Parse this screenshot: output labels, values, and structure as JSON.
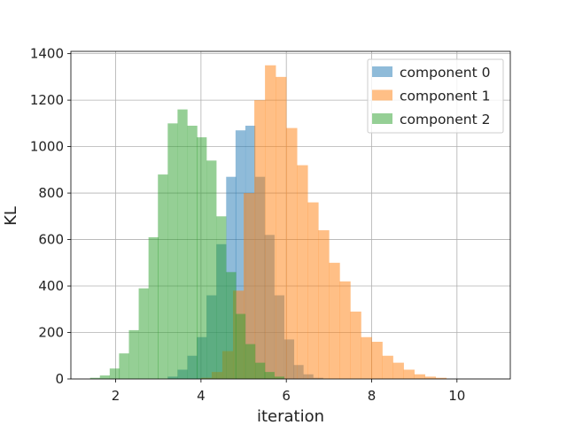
{
  "chart_data": {
    "type": "bar",
    "title": "",
    "xlabel": "iteration",
    "ylabel": "KL",
    "xlim": [
      0.95,
      11.25
    ],
    "ylim": [
      0,
      1410
    ],
    "xticks": [
      2,
      4,
      6,
      8,
      10
    ],
    "yticks": [
      0,
      200,
      400,
      600,
      800,
      1000,
      1200,
      1400
    ],
    "grid": true,
    "legend_position": "top-right",
    "series": [
      {
        "name": "component 0",
        "color": "#1f77b4",
        "opacity": 0.5,
        "bin_width": 0.228,
        "bins": [
          [
            3.22,
            10
          ],
          [
            3.45,
            40
          ],
          [
            3.68,
            100
          ],
          [
            3.9,
            180
          ],
          [
            4.13,
            360
          ],
          [
            4.36,
            580
          ],
          [
            4.59,
            870
          ],
          [
            4.81,
            1070
          ],
          [
            5.04,
            1090
          ],
          [
            5.27,
            870
          ],
          [
            5.49,
            620
          ],
          [
            5.72,
            360
          ],
          [
            5.95,
            170
          ],
          [
            6.17,
            60
          ],
          [
            6.4,
            20
          ],
          [
            6.63,
            5
          ]
        ]
      },
      {
        "name": "component 1",
        "color": "#ff7f0e",
        "opacity": 0.5,
        "bin_width": 0.25,
        "bins": [
          [
            4.0,
            5
          ],
          [
            4.25,
            30
          ],
          [
            4.5,
            120
          ],
          [
            4.75,
            380
          ],
          [
            5.0,
            800
          ],
          [
            5.25,
            1200
          ],
          [
            5.5,
            1350
          ],
          [
            5.75,
            1300
          ],
          [
            6.0,
            1080
          ],
          [
            6.25,
            920
          ],
          [
            6.5,
            760
          ],
          [
            6.75,
            640
          ],
          [
            7.0,
            500
          ],
          [
            7.25,
            420
          ],
          [
            7.5,
            290
          ],
          [
            7.75,
            180
          ],
          [
            8.0,
            160
          ],
          [
            8.25,
            100
          ],
          [
            8.5,
            70
          ],
          [
            8.75,
            40
          ],
          [
            9.0,
            20
          ],
          [
            9.25,
            10
          ],
          [
            9.5,
            5
          ]
        ]
      },
      {
        "name": "component 2",
        "color": "#2ca02c",
        "opacity": 0.5,
        "bin_width": 0.228,
        "bins": [
          [
            1.4,
            5
          ],
          [
            1.63,
            15
          ],
          [
            1.86,
            45
          ],
          [
            2.08,
            110
          ],
          [
            2.31,
            210
          ],
          [
            2.54,
            390
          ],
          [
            2.77,
            610
          ],
          [
            2.99,
            880
          ],
          [
            3.22,
            1100
          ],
          [
            3.45,
            1160
          ],
          [
            3.68,
            1090
          ],
          [
            3.9,
            1040
          ],
          [
            4.13,
            940
          ],
          [
            4.36,
            700
          ],
          [
            4.59,
            460
          ],
          [
            4.81,
            280
          ],
          [
            5.04,
            150
          ],
          [
            5.27,
            70
          ],
          [
            5.49,
            30
          ],
          [
            5.72,
            10
          ]
        ]
      }
    ]
  }
}
